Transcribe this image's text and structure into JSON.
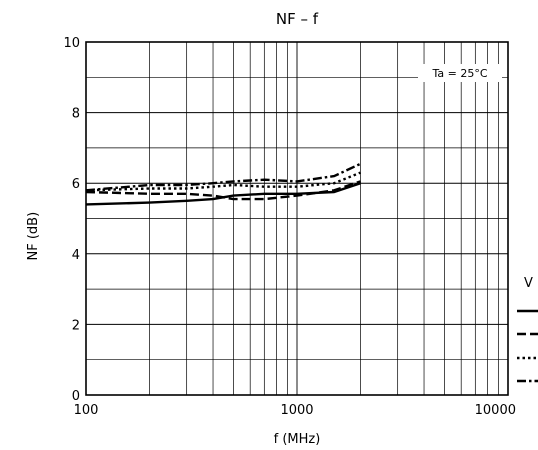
{
  "chart_data": {
    "type": "line",
    "title": "NF  –  f",
    "xlabel": "f    (MHz)",
    "ylabel": "NF    (dB)",
    "x_scale": "log",
    "xlim": [
      100,
      10000
    ],
    "ylim": [
      0,
      10
    ],
    "x_ticks": [
      "100",
      "1000",
      "10000"
    ],
    "y_ticks": [
      "0",
      "2",
      "4",
      "6",
      "8",
      "10"
    ],
    "grid": true,
    "annotation": "Ta = 25°C",
    "legend_title": "V",
    "legend_placement": "right, clipped",
    "series": [
      {
        "style": "solid",
        "x": [
          100,
          200,
          300,
          400,
          500,
          700,
          1000,
          1500,
          2000
        ],
        "y": [
          5.4,
          5.45,
          5.5,
          5.55,
          5.65,
          5.7,
          5.7,
          5.75,
          6.0
        ]
      },
      {
        "style": "dashed",
        "x": [
          100,
          200,
          300,
          400,
          500,
          700,
          1000,
          1500,
          2000
        ],
        "y": [
          5.75,
          5.7,
          5.7,
          5.65,
          5.55,
          5.55,
          5.65,
          5.8,
          6.05
        ]
      },
      {
        "style": "dotted",
        "x": [
          100,
          200,
          300,
          400,
          500,
          700,
          1000,
          1500,
          2000
        ],
        "y": [
          5.8,
          5.85,
          5.85,
          5.9,
          5.95,
          5.9,
          5.9,
          6.0,
          6.3
        ]
      },
      {
        "style": "dashdot",
        "x": [
          100,
          200,
          300,
          400,
          500,
          700,
          1000,
          1500,
          2000
        ],
        "y": [
          5.8,
          5.95,
          5.95,
          6.0,
          6.05,
          6.1,
          6.05,
          6.2,
          6.55
        ]
      }
    ]
  }
}
